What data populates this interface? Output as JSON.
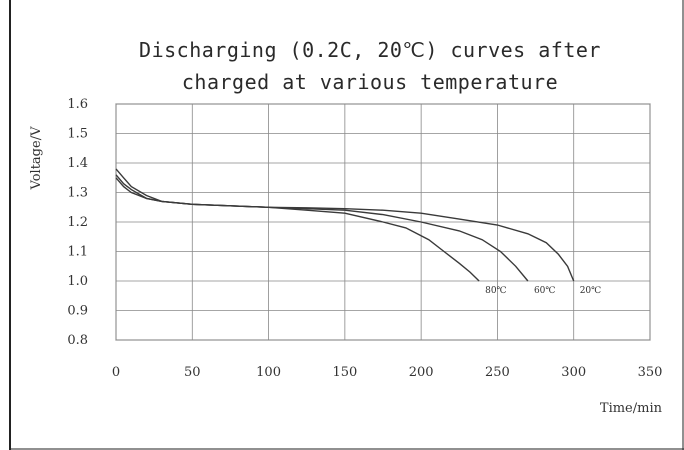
{
  "chart_data": {
    "type": "line",
    "title_line1": "Discharging (0.2C, 20℃) curves after",
    "title_line2": "charged at various temperature",
    "xlabel": "Time/min",
    "ylabel": "Voltage/V",
    "xlim": [
      0,
      350
    ],
    "ylim": [
      0.8,
      1.6
    ],
    "xticks": [
      0,
      50,
      100,
      150,
      200,
      250,
      300,
      350
    ],
    "yticks": [
      0.8,
      0.9,
      1.0,
      1.1,
      1.2,
      1.3,
      1.4,
      1.5,
      1.6
    ],
    "grid": true,
    "series": [
      {
        "name": "80℃",
        "points": [
          [
            0,
            1.35
          ],
          [
            5,
            1.32
          ],
          [
            10,
            1.3
          ],
          [
            20,
            1.28
          ],
          [
            30,
            1.27
          ],
          [
            50,
            1.26
          ],
          [
            75,
            1.255
          ],
          [
            100,
            1.25
          ],
          [
            125,
            1.24
          ],
          [
            150,
            1.23
          ],
          [
            175,
            1.2
          ],
          [
            190,
            1.18
          ],
          [
            205,
            1.14
          ],
          [
            215,
            1.1
          ],
          [
            225,
            1.06
          ],
          [
            232,
            1.03
          ],
          [
            238,
            1.0
          ]
        ]
      },
      {
        "name": "60℃",
        "points": [
          [
            0,
            1.36
          ],
          [
            5,
            1.33
          ],
          [
            10,
            1.31
          ],
          [
            20,
            1.28
          ],
          [
            30,
            1.27
          ],
          [
            50,
            1.26
          ],
          [
            75,
            1.255
          ],
          [
            100,
            1.25
          ],
          [
            125,
            1.245
          ],
          [
            150,
            1.24
          ],
          [
            175,
            1.225
          ],
          [
            200,
            1.2
          ],
          [
            225,
            1.17
          ],
          [
            240,
            1.14
          ],
          [
            252,
            1.1
          ],
          [
            262,
            1.05
          ],
          [
            270,
            1.0
          ]
        ]
      },
      {
        "name": "20℃",
        "points": [
          [
            0,
            1.38
          ],
          [
            5,
            1.35
          ],
          [
            10,
            1.32
          ],
          [
            20,
            1.29
          ],
          [
            30,
            1.27
          ],
          [
            50,
            1.26
          ],
          [
            75,
            1.255
          ],
          [
            100,
            1.25
          ],
          [
            125,
            1.248
          ],
          [
            150,
            1.245
          ],
          [
            175,
            1.24
          ],
          [
            200,
            1.23
          ],
          [
            225,
            1.21
          ],
          [
            250,
            1.19
          ],
          [
            270,
            1.16
          ],
          [
            282,
            1.13
          ],
          [
            290,
            1.09
          ],
          [
            296,
            1.05
          ],
          [
            300,
            1.0
          ]
        ]
      }
    ]
  }
}
